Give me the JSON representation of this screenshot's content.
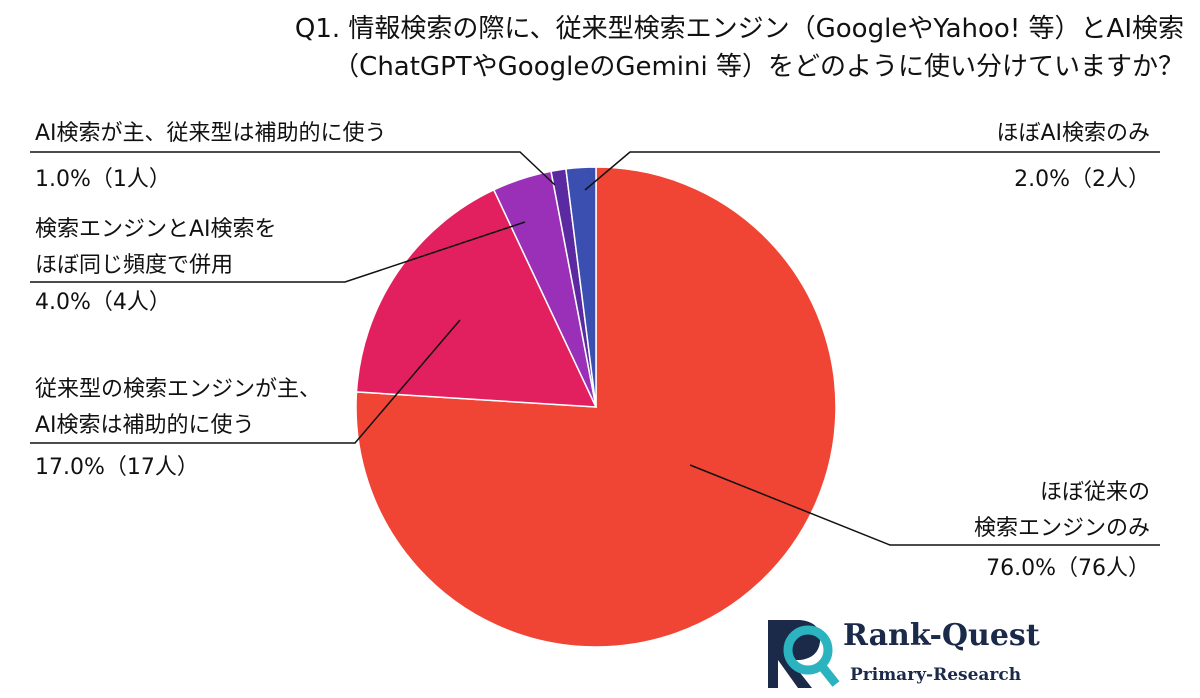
{
  "chart_data": {
    "type": "pie",
    "title": "Q1. 情報検索の際に、従来型検索エンジン（GoogleやYahoo! 等）とAI検索\n（ChatGPTやGoogleのGemini 等）をどのように使い分けていますか？",
    "categories": [
      "ほぼ従来の\n検索エンジンのみ",
      "従来型の検索エンジンが主、\nAI検索は補助的に使う",
      "検索エンジンとAI検索を\nほぼ同じ頻度で併用",
      "AI検索が主、従来型は補助的に使う",
      "ほぼAI検索のみ"
    ],
    "values": [
      76,
      17,
      4,
      1,
      2
    ],
    "value_labels": [
      "76.0%（76人）",
      "17.0%（17人）",
      "4.0%（4人）",
      "1.0%（1人）",
      "2.0%（2人）"
    ],
    "colors": [
      "#f04434",
      "#e2205f",
      "#9b30b8",
      "#5b2aa0",
      "#3a4fb0"
    ],
    "logo": {
      "name": "Rank-Quest",
      "subtitle": "Primary-Research"
    }
  }
}
